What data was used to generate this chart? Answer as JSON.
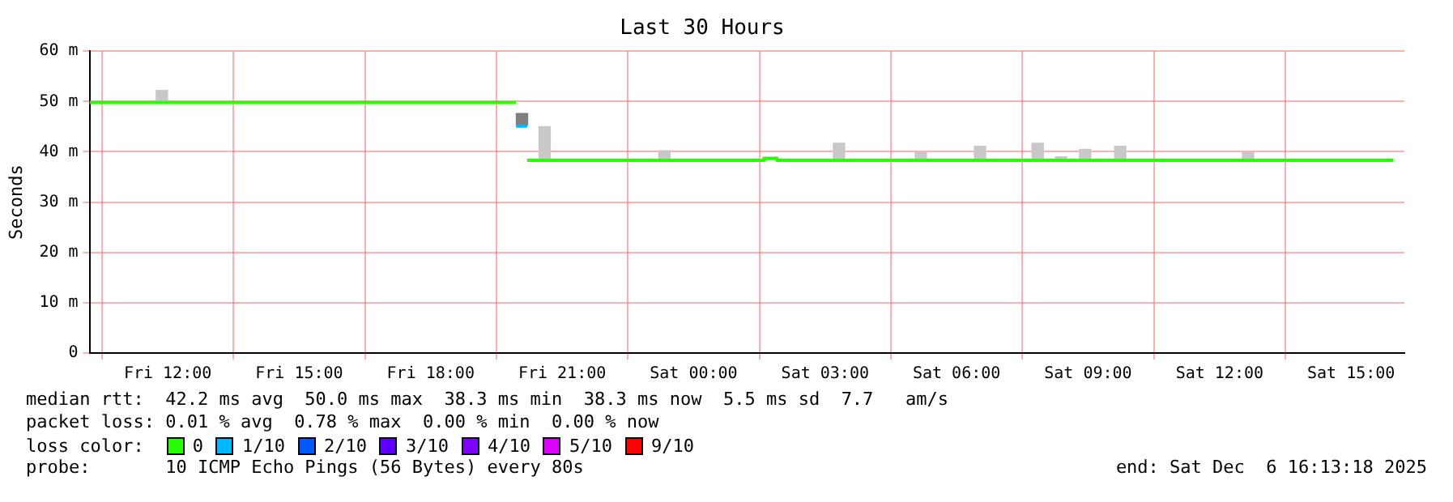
{
  "chart_data": {
    "type": "step",
    "title": "Last 30 Hours",
    "ylabel": "Seconds",
    "xlim": [
      "2025-12-05T10:13",
      "2025-12-06T16:13"
    ],
    "xticks": [
      {
        "value": "2025-12-05T12:00",
        "label": "Fri 12:00"
      },
      {
        "value": "2025-12-05T15:00",
        "label": "Fri 15:00"
      },
      {
        "value": "2025-12-05T18:00",
        "label": "Fri 18:00"
      },
      {
        "value": "2025-12-05T21:00",
        "label": "Fri 21:00"
      },
      {
        "value": "2025-12-06T00:00",
        "label": "Sat 00:00"
      },
      {
        "value": "2025-12-06T03:00",
        "label": "Sat 03:00"
      },
      {
        "value": "2025-12-06T06:00",
        "label": "Sat 06:00"
      },
      {
        "value": "2025-12-06T09:00",
        "label": "Sat 09:00"
      },
      {
        "value": "2025-12-06T12:00",
        "label": "Sat 12:00"
      },
      {
        "value": "2025-12-06T15:00",
        "label": "Sat 15:00"
      }
    ],
    "ylim": [
      0,
      60
    ],
    "yticks": [
      0,
      {
        "value": 10,
        "label": "10 m"
      },
      {
        "value": 20,
        "label": "20 m"
      },
      {
        "value": 30,
        "label": "30 m"
      },
      {
        "value": 40,
        "label": "40 m"
      },
      {
        "value": 50,
        "label": "50 m"
      },
      {
        "value": 60,
        "label": "60 m"
      }
    ],
    "grid": true,
    "legend": "bottom",
    "series": [
      {
        "type": "bar",
        "color": "#c8c8c8",
        "x": [
          "2025-12-05T11:52",
          "2025-12-05T20:36",
          "2025-12-05T23:20",
          "2025-12-06T03:19",
          "2025-12-06T05:11",
          "2025-12-06T06:32",
          "2025-12-06T07:51",
          "2025-12-06T08:23",
          "2025-12-06T08:56",
          "2025-12-06T09:44",
          "2025-12-06T12:39"
        ],
        "base": [
          49.8,
          38.4,
          38.3,
          38.3,
          38.3,
          38.3,
          38.3,
          38.3,
          38.3,
          38.3,
          38.3
        ],
        "values": [
          2.4,
          6.6,
          1.9,
          3.4,
          1.6,
          2.8,
          3.4,
          0.7,
          2.2,
          2.8,
          1.6
        ]
      },
      {
        "type": "bar",
        "color": "#7f7f7f",
        "x": [
          "2025-12-05T20:05"
        ],
        "base": [
          45.3
        ],
        "values": [
          2.3
        ]
      },
      {
        "name": "0",
        "color": "#26ff00",
        "x": [
          "2025-12-05T10:13",
          "2025-12-05T19:57"
        ],
        "values": [
          49.8,
          49.8
        ]
      },
      {
        "color": "#26ff00",
        "x": [
          "2025-12-05T20:12",
          "2025-12-06T01:36",
          "2025-12-06T01:54",
          "2025-12-06T15:58"
        ],
        "values": [
          38.3,
          38.7,
          38.3,
          38.3
        ]
      },
      {
        "name": "1/10",
        "color": "#00b8ff",
        "x": [
          "2025-12-05T19:57",
          "2025-12-05T20:12"
        ],
        "values": [
          45.1,
          45.1
        ]
      },
      {
        "name": "2/10",
        "color": "#0059ff"
      },
      {
        "name": "3/10",
        "color": "#5e00ff"
      },
      {
        "name": "4/10",
        "color": "#7e00ff"
      },
      {
        "name": "5/10",
        "color": "#dd00ff"
      },
      {
        "name": "9/10",
        "color": "#ff0000"
      }
    ],
    "annotations": [
      "median rtt:  42.2 ms avg  50.0 ms max  38.3 ms min  38.3 ms now  5.5 ms sd  7.7   am/s",
      "packet loss: 0.01 % avg  0.78 % max  0.00 % min  0.00 % now",
      "loss color:",
      "probe:       10 ICMP Echo Pings (56 Bytes) every 80s",
      "end: Sat Dec  6 16:13:18 2025"
    ]
  }
}
